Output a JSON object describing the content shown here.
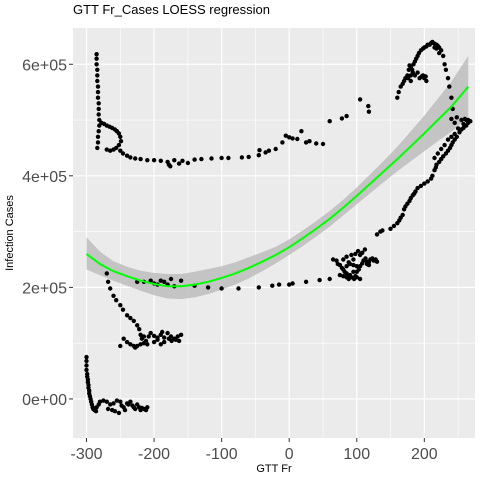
{
  "chart_data": {
    "type": "scatter",
    "title": "GTT Fr_Cases LOESS regression",
    "xlabel": "GTT Fr",
    "ylabel": "Infection Cases",
    "xlim": [
      -320,
      275
    ],
    "ylim": [
      -70000,
      665000
    ],
    "x_ticks": [
      -300,
      -200,
      -100,
      0,
      100,
      200
    ],
    "x_tick_labels": [
      "-300",
      "-200",
      "-100",
      "0",
      "100",
      "200"
    ],
    "y_ticks": [
      0,
      200000,
      400000,
      600000
    ],
    "y_tick_labels": [
      "0e+00",
      "2e+05",
      "4e+05",
      "6e+05"
    ],
    "grid": true,
    "panel_background": "#ebebeb",
    "grid_color": "#ffffff",
    "point_color": "#000000",
    "smooth_color": "#00ff00",
    "ribbon_color": "#bdbdbd",
    "points": [
      [
        -300,
        75000
      ],
      [
        -300,
        68000
      ],
      [
        -300,
        60000
      ],
      [
        -300,
        52000
      ],
      [
        -299,
        45000
      ],
      [
        -299,
        40000
      ],
      [
        -298,
        35000
      ],
      [
        -298,
        30000
      ],
      [
        -297,
        25000
      ],
      [
        -297,
        20000
      ],
      [
        -296,
        15000
      ],
      [
        -296,
        10000
      ],
      [
        -295,
        5000
      ],
      [
        -294,
        0
      ],
      [
        -293,
        -5000
      ],
      [
        -292,
        -10000
      ],
      [
        -291,
        -15000
      ],
      [
        -290,
        -18000
      ],
      [
        -288,
        -20000
      ],
      [
        -285,
        -15000
      ],
      [
        -282,
        -10000
      ],
      [
        -280,
        -5000
      ],
      [
        -275,
        -3000
      ],
      [
        -270,
        -5000
      ],
      [
        -265,
        -10000
      ],
      [
        -260,
        -8000
      ],
      [
        -255,
        -3000
      ],
      [
        -250,
        -5000
      ],
      [
        -248,
        -12000
      ],
      [
        -245,
        -15000
      ],
      [
        -243,
        -20000
      ],
      [
        -240,
        -8000
      ],
      [
        -238,
        -10000
      ],
      [
        -235,
        -5000
      ],
      [
        -232,
        -12000
      ],
      [
        -230,
        -15000
      ],
      [
        -228,
        -18000
      ],
      [
        -225,
        -10000
      ],
      [
        -222,
        -15000
      ],
      [
        -220,
        -20000
      ],
      [
        -218,
        -16000
      ],
      [
        -215,
        -18000
      ],
      [
        -212,
        -20000
      ],
      [
        -210,
        -15000
      ],
      [
        -268,
        -18000
      ],
      [
        -262,
        -20000
      ],
      [
        -258,
        -22000
      ],
      [
        -252,
        -25000
      ],
      [
        -286,
        -22000
      ],
      [
        -285,
        618000
      ],
      [
        -285,
        610000
      ],
      [
        -285,
        600000
      ],
      [
        -284,
        590000
      ],
      [
        -284,
        580000
      ],
      [
        -284,
        570000
      ],
      [
        -283,
        560000
      ],
      [
        -283,
        550000
      ],
      [
        -283,
        540000
      ],
      [
        -282,
        530000
      ],
      [
        -282,
        520000
      ],
      [
        -282,
        510000
      ],
      [
        -281,
        500000
      ],
      [
        -281,
        490000
      ],
      [
        -282,
        480000
      ],
      [
        -283,
        470000
      ],
      [
        -283,
        460000
      ],
      [
        -284,
        450000
      ],
      [
        -278,
        495000
      ],
      [
        -274,
        493000
      ],
      [
        -270,
        490000
      ],
      [
        -266,
        488000
      ],
      [
        -262,
        486000
      ],
      [
        -258,
        483000
      ],
      [
        -255,
        480000
      ],
      [
        -252,
        476000
      ],
      [
        -250,
        470000
      ],
      [
        -249,
        462000
      ],
      [
        -252,
        455000
      ],
      [
        -256,
        450000
      ],
      [
        -260,
        447000
      ],
      [
        -265,
        445000
      ],
      [
        -270,
        447000
      ],
      [
        -250,
        445000
      ],
      [
        -246,
        440000
      ],
      [
        -240,
        436000
      ],
      [
        -235,
        433000
      ],
      [
        -228,
        431000
      ],
      [
        -220,
        430000
      ],
      [
        -210,
        428000
      ],
      [
        -200,
        428000
      ],
      [
        -190,
        427000
      ],
      [
        -180,
        425000
      ],
      [
        -178,
        420000
      ],
      [
        -176,
        417000
      ],
      [
        -170,
        428000
      ],
      [
        -163,
        422000
      ],
      [
        -158,
        427000
      ],
      [
        -150,
        423000
      ],
      [
        -140,
        429000
      ],
      [
        -130,
        430000
      ],
      [
        -115,
        431000
      ],
      [
        -100,
        432000
      ],
      [
        -90,
        432000
      ],
      [
        -70,
        433000
      ],
      [
        -60,
        434000
      ],
      [
        -45,
        437000
      ],
      [
        -44,
        446000
      ],
      [
        -35,
        442000
      ],
      [
        -30,
        445000
      ],
      [
        -20,
        448000
      ],
      [
        -10,
        460000
      ],
      [
        -5,
        472000
      ],
      [
        0,
        469000
      ],
      [
        5,
        467000
      ],
      [
        12,
        466000
      ],
      [
        18,
        480000
      ],
      [
        25,
        460000
      ],
      [
        30,
        462000
      ],
      [
        40,
        458000
      ],
      [
        50,
        457000
      ],
      [
        60,
        498000
      ],
      [
        78,
        503000
      ],
      [
        85,
        507000
      ],
      [
        105,
        537000
      ],
      [
        117,
        525000
      ],
      [
        118,
        515000
      ],
      [
        -270,
        225000
      ],
      [
        -268,
        210000
      ],
      [
        -265,
        198000
      ],
      [
        -260,
        185000
      ],
      [
        -256,
        177000
      ],
      [
        -250,
        168000
      ],
      [
        -246,
        160000
      ],
      [
        -240,
        150000
      ],
      [
        -235,
        145000
      ],
      [
        -230,
        140000
      ],
      [
        -225,
        132000
      ],
      [
        -222,
        125000
      ],
      [
        -220,
        115000
      ],
      [
        -218,
        108000
      ],
      [
        -215,
        112000
      ],
      [
        -212,
        104000
      ],
      [
        -208,
        112000
      ],
      [
        -205,
        118000
      ],
      [
        -200,
        113000
      ],
      [
        -195,
        110000
      ],
      [
        -190,
        115000
      ],
      [
        -188,
        120000
      ],
      [
        -185,
        110000
      ],
      [
        -180,
        118000
      ],
      [
        -175,
        112000
      ],
      [
        -170,
        108000
      ],
      [
        -165,
        112000
      ],
      [
        -160,
        115000
      ],
      [
        -240,
        102000
      ],
      [
        -235,
        98000
      ],
      [
        -230,
        95000
      ],
      [
        -228,
        92000
      ],
      [
        -225,
        95000
      ],
      [
        -220,
        98000
      ],
      [
        -215,
        100000
      ],
      [
        -210,
        98000
      ],
      [
        -200,
        102000
      ],
      [
        -195,
        106000
      ],
      [
        -190,
        98000
      ],
      [
        -185,
        102000
      ],
      [
        -178,
        108000
      ],
      [
        -174,
        104000
      ],
      [
        -168,
        106000
      ],
      [
        -163,
        104000
      ],
      [
        -250,
        95000
      ],
      [
        -245,
        108000
      ],
      [
        -225,
        210000
      ],
      [
        -215,
        210000
      ],
      [
        -205,
        212000
      ],
      [
        -200,
        207000
      ],
      [
        -195,
        205000
      ],
      [
        -190,
        212000
      ],
      [
        -185,
        210000
      ],
      [
        -180,
        205000
      ],
      [
        -175,
        215000
      ],
      [
        -170,
        202000
      ],
      [
        -160,
        212000
      ],
      [
        -140,
        203000
      ],
      [
        -120,
        200000
      ],
      [
        -100,
        198000
      ],
      [
        -75,
        198000
      ],
      [
        -45,
        200000
      ],
      [
        -25,
        203000
      ],
      [
        -15,
        205000
      ],
      [
        0,
        205000
      ],
      [
        5,
        207000
      ],
      [
        25,
        210000
      ],
      [
        45,
        213000
      ],
      [
        60,
        215000
      ],
      [
        65,
        250000
      ],
      [
        70,
        248000
      ],
      [
        72,
        242000
      ],
      [
        75,
        240000
      ],
      [
        78,
        235000
      ],
      [
        80,
        232000
      ],
      [
        82,
        228000
      ],
      [
        85,
        225000
      ],
      [
        86,
        220000
      ],
      [
        88,
        215000
      ],
      [
        90,
        222000
      ],
      [
        92,
        218000
      ],
      [
        95,
        228000
      ],
      [
        98,
        220000
      ],
      [
        100,
        228000
      ],
      [
        103,
        232000
      ],
      [
        105,
        238000
      ],
      [
        108,
        243000
      ],
      [
        110,
        248000
      ],
      [
        113,
        252000
      ],
      [
        115,
        246000
      ],
      [
        118,
        245000
      ],
      [
        120,
        250000
      ],
      [
        123,
        252000
      ],
      [
        125,
        248000
      ],
      [
        128,
        250000
      ],
      [
        130,
        246000
      ],
      [
        80,
        250000
      ],
      [
        85,
        255000
      ],
      [
        88,
        245000
      ],
      [
        92,
        258000
      ],
      [
        95,
        250000
      ],
      [
        98,
        260000
      ],
      [
        102,
        265000
      ],
      [
        105,
        258000
      ],
      [
        108,
        262000
      ],
      [
        112,
        268000
      ],
      [
        115,
        242000
      ],
      [
        118,
        240000
      ],
      [
        100,
        238000
      ],
      [
        95,
        240000
      ],
      [
        90,
        242000
      ],
      [
        85,
        238000
      ],
      [
        75,
        222000
      ],
      [
        80,
        220000
      ],
      [
        85,
        218000
      ],
      [
        90,
        220000
      ],
      [
        96,
        215000
      ],
      [
        100,
        218000
      ],
      [
        105,
        215000
      ],
      [
        130,
        295000
      ],
      [
        135,
        300000
      ],
      [
        138,
        302000
      ],
      [
        150,
        305000
      ],
      [
        155,
        310000
      ],
      [
        160,
        315000
      ],
      [
        163,
        320000
      ],
      [
        165,
        325000
      ],
      [
        168,
        330000
      ],
      [
        170,
        340000
      ],
      [
        172,
        345000
      ],
      [
        175,
        350000
      ],
      [
        178,
        355000
      ],
      [
        180,
        360000
      ],
      [
        183,
        365000
      ],
      [
        185,
        368000
      ],
      [
        187,
        372000
      ],
      [
        190,
        378000
      ],
      [
        195,
        382000
      ],
      [
        200,
        386000
      ],
      [
        205,
        390000
      ],
      [
        210,
        395000
      ],
      [
        212,
        400000
      ],
      [
        215,
        410000
      ],
      [
        217,
        415000
      ],
      [
        218,
        420000
      ],
      [
        222,
        425000
      ],
      [
        225,
        430000
      ],
      [
        228,
        435000
      ],
      [
        232,
        440000
      ],
      [
        235,
        445000
      ],
      [
        238,
        450000
      ],
      [
        240,
        455000
      ],
      [
        242,
        460000
      ],
      [
        245,
        465000
      ],
      [
        248,
        470000
      ],
      [
        252,
        478000
      ],
      [
        255,
        483000
      ],
      [
        258,
        486000
      ],
      [
        262,
        490000
      ],
      [
        265,
        495000
      ],
      [
        268,
        498000
      ],
      [
        262,
        500000
      ],
      [
        258,
        493000
      ],
      [
        250,
        485000
      ],
      [
        245,
        475000
      ],
      [
        240,
        470000
      ],
      [
        235,
        465000
      ],
      [
        230,
        455000
      ],
      [
        225,
        448000
      ],
      [
        220,
        440000
      ],
      [
        215,
        432000
      ],
      [
        245,
        495000
      ],
      [
        255,
        500000
      ],
      [
        260,
        502000
      ],
      [
        265,
        500000
      ],
      [
        240,
        502000
      ],
      [
        248,
        505000
      ],
      [
        160,
        540000
      ],
      [
        162,
        550000
      ],
      [
        165,
        560000
      ],
      [
        168,
        565000
      ],
      [
        170,
        570000
      ],
      [
        172,
        575000
      ],
      [
        175,
        580000
      ],
      [
        177,
        590000
      ],
      [
        178,
        598000
      ],
      [
        180,
        595000
      ],
      [
        182,
        590000
      ],
      [
        184,
        600000
      ],
      [
        186,
        605000
      ],
      [
        188,
        610000
      ],
      [
        190,
        615000
      ],
      [
        192,
        620000
      ],
      [
        195,
        625000
      ],
      [
        198,
        628000
      ],
      [
        200,
        630000
      ],
      [
        203,
        632000
      ],
      [
        205,
        635000
      ],
      [
        208,
        635000
      ],
      [
        210,
        638000
      ],
      [
        212,
        640000
      ],
      [
        215,
        637000
      ],
      [
        218,
        635000
      ],
      [
        220,
        633000
      ],
      [
        222,
        630000
      ],
      [
        225,
        625000
      ],
      [
        228,
        615000
      ],
      [
        230,
        600000
      ],
      [
        232,
        590000
      ],
      [
        235,
        575000
      ],
      [
        237,
        560000
      ],
      [
        240,
        540000
      ],
      [
        242,
        520000
      ],
      [
        215,
        630000
      ],
      [
        218,
        628000
      ],
      [
        222,
        620000
      ],
      [
        176,
        575000
      ],
      [
        180,
        580000
      ],
      [
        183,
        585000
      ],
      [
        186,
        580000
      ],
      [
        190,
        585000
      ],
      [
        193,
        575000
      ],
      [
        196,
        578000
      ],
      [
        198,
        580000
      ],
      [
        200,
        575000
      ],
      [
        202,
        578000
      ],
      [
        203,
        570000
      ],
      [
        180,
        570000
      ]
    ],
    "loess": {
      "x": [
        -300,
        -280,
        -260,
        -240,
        -220,
        -200,
        -180,
        -160,
        -140,
        -120,
        -100,
        -80,
        -60,
        -40,
        -20,
        0,
        20,
        40,
        60,
        80,
        100,
        120,
        140,
        160,
        180,
        200,
        220,
        240,
        265
      ],
      "y": [
        260000,
        242000,
        229000,
        220000,
        212000,
        206000,
        202000,
        202000,
        205000,
        210000,
        217000,
        225000,
        235000,
        246000,
        258000,
        272000,
        288000,
        305000,
        323000,
        343000,
        364000,
        386000,
        408000,
        430000,
        453000,
        476000,
        500000,
        524000,
        560000
      ],
      "lower": [
        232000,
        222000,
        212000,
        203000,
        194000,
        186000,
        180000,
        179000,
        182000,
        188000,
        196000,
        205000,
        216000,
        229000,
        243000,
        258000,
        274000,
        291000,
        309000,
        329000,
        349000,
        369000,
        389000,
        408000,
        426000,
        444000,
        462000,
        479000,
        505000
      ],
      "upper": [
        290000,
        264000,
        247000,
        237000,
        230000,
        226000,
        224000,
        224000,
        228000,
        233000,
        238000,
        245000,
        254000,
        263000,
        273000,
        286000,
        302000,
        319000,
        337000,
        357000,
        379000,
        403000,
        427000,
        452000,
        480000,
        508000,
        538000,
        569000,
        615000
      ]
    }
  }
}
